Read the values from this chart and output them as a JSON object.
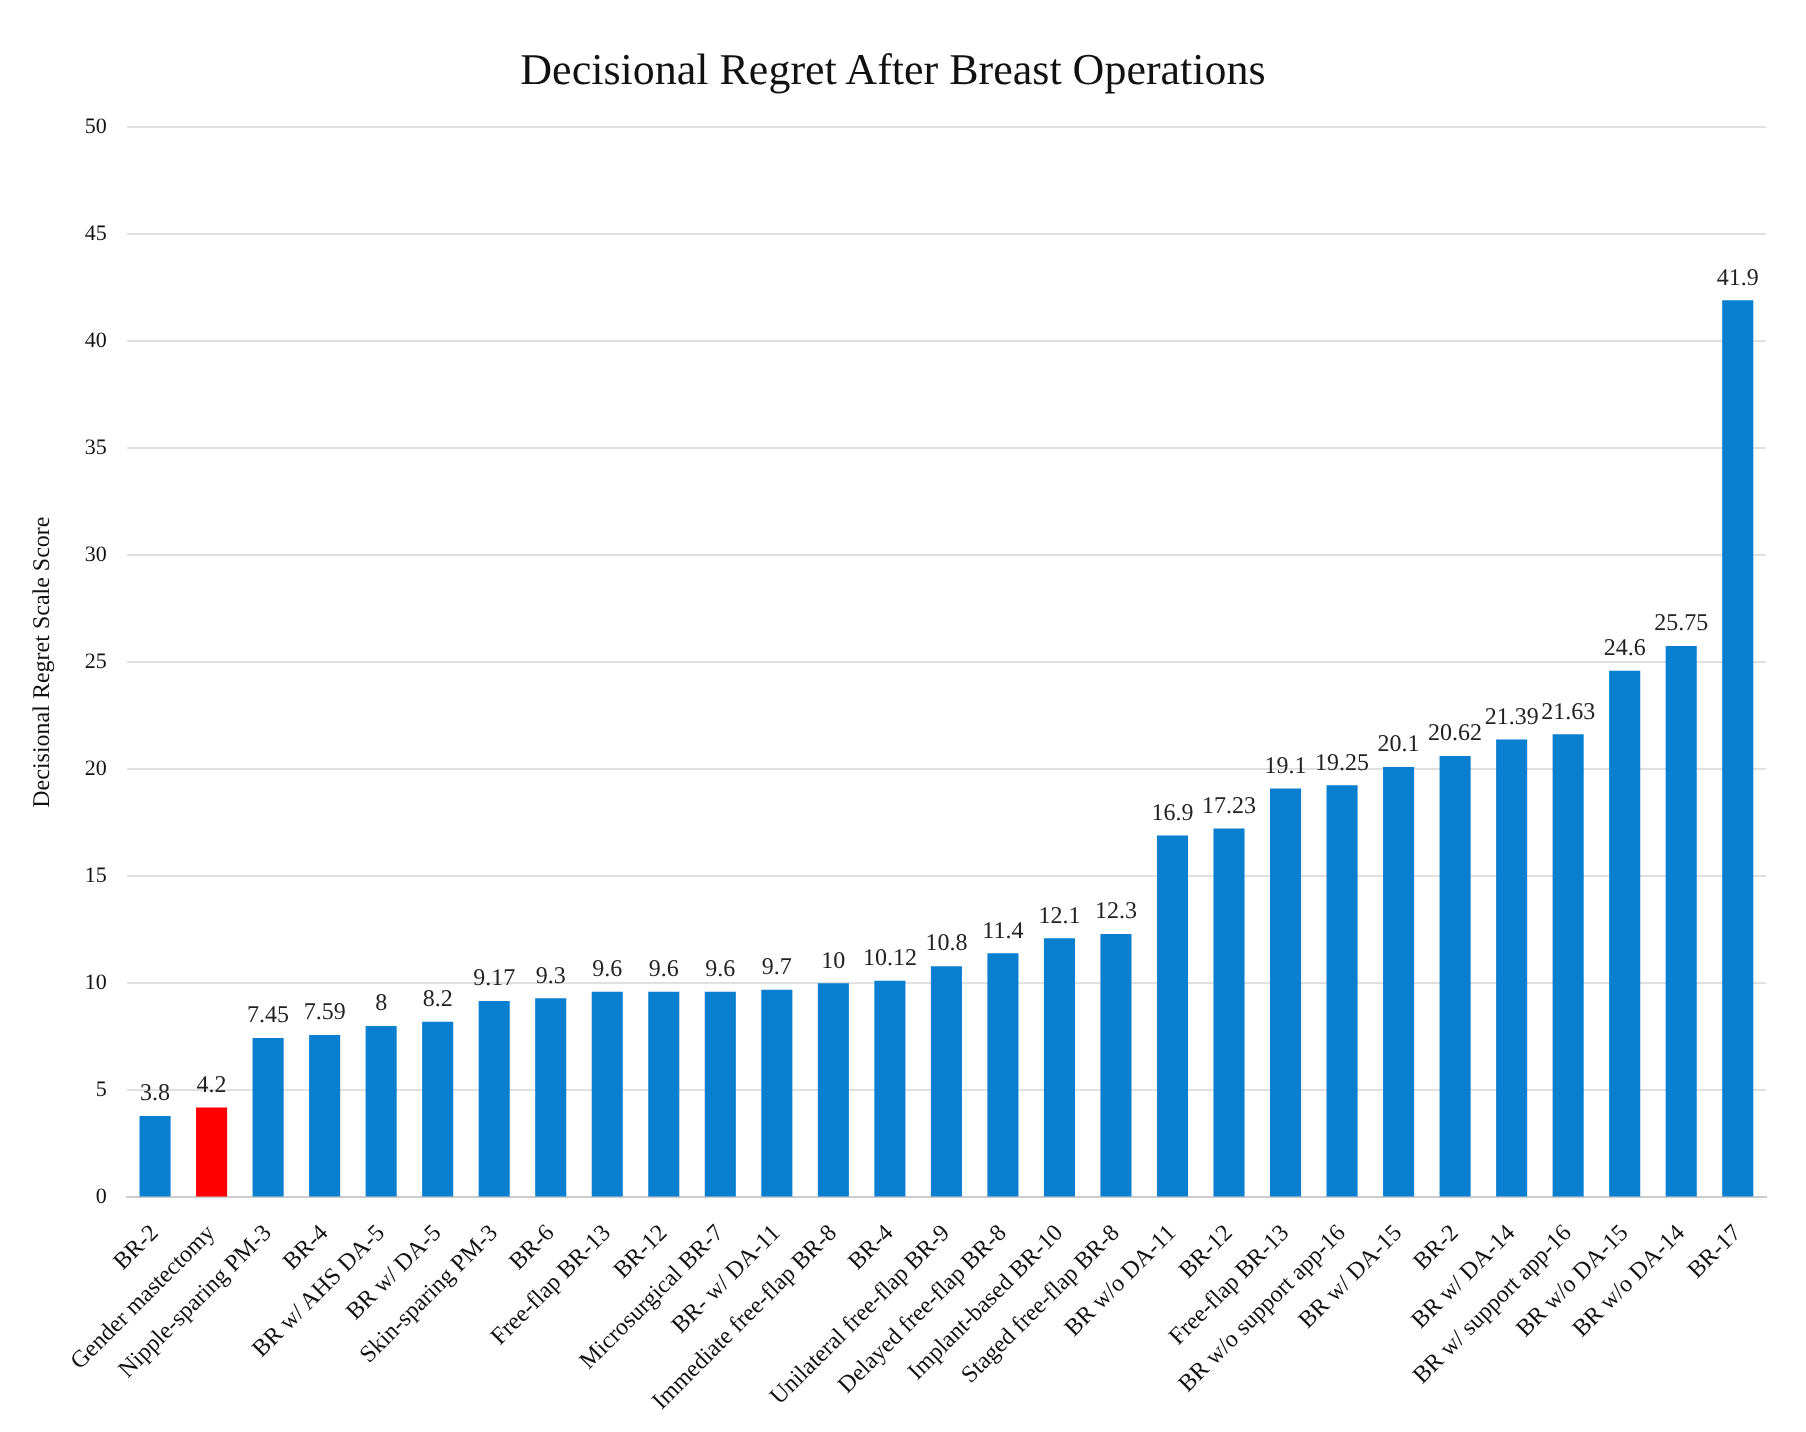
{
  "chart_data": {
    "type": "bar",
    "title": "Decisional Regret After Breast Operations",
    "ylabel": "Decisional Regret Scale Score",
    "categories": [
      "BR-2",
      "Gender mastectomy",
      "Nipple-sparing PM-3",
      "BR-4",
      "BR w/ AHS DA-5",
      "BR w/ DA-5",
      "Skin-sparing PM-3",
      "BR-6",
      "Free-flap BR-13",
      "BR-12",
      "Microsurgical BR-7",
      "BR- w/ DA-11",
      "Immediate free-flap BR-8",
      "BR-4",
      "Unilateral free-flap BR-9",
      "Delayed free-flap BR-8",
      "Implant-based BR-10",
      "Staged free-flap BR-8",
      "BR w/o DA-11",
      "BR-12",
      "Free-flap BR-13",
      "BR w/o support app-16",
      "BR w/ DA-15",
      "BR-2",
      "BR w/ DA-14",
      "BR w/ support app-16",
      "BR w/o DA-15",
      "BR w/o DA-14",
      "BR-17"
    ],
    "values": [
      3.8,
      4.2,
      7.45,
      7.59,
      8,
      8.2,
      9.17,
      9.3,
      9.6,
      9.6,
      9.6,
      9.7,
      10,
      10.12,
      10.8,
      11.4,
      12.1,
      12.3,
      16.9,
      17.23,
      19.1,
      19.25,
      20.1,
      20.62,
      21.39,
      21.63,
      24.6,
      25.75,
      41.9
    ],
    "colors": [
      "#0a7fd0",
      "#ff0000",
      "#0a7fd0",
      "#0a7fd0",
      "#0a7fd0",
      "#0a7fd0",
      "#0a7fd0",
      "#0a7fd0",
      "#0a7fd0",
      "#0a7fd0",
      "#0a7fd0",
      "#0a7fd0",
      "#0a7fd0",
      "#0a7fd0",
      "#0a7fd0",
      "#0a7fd0",
      "#0a7fd0",
      "#0a7fd0",
      "#0a7fd0",
      "#0a7fd0",
      "#0a7fd0",
      "#0a7fd0",
      "#0a7fd0",
      "#0a7fd0",
      "#0a7fd0",
      "#0a7fd0",
      "#0a7fd0",
      "#0a7fd0",
      "#0a7fd0"
    ],
    "ylim": [
      0,
      50
    ],
    "yticks": [
      0,
      5,
      10,
      15,
      20,
      25,
      30,
      35,
      40,
      45,
      50
    ],
    "grid": "y",
    "data_labels": true,
    "legend": false
  }
}
